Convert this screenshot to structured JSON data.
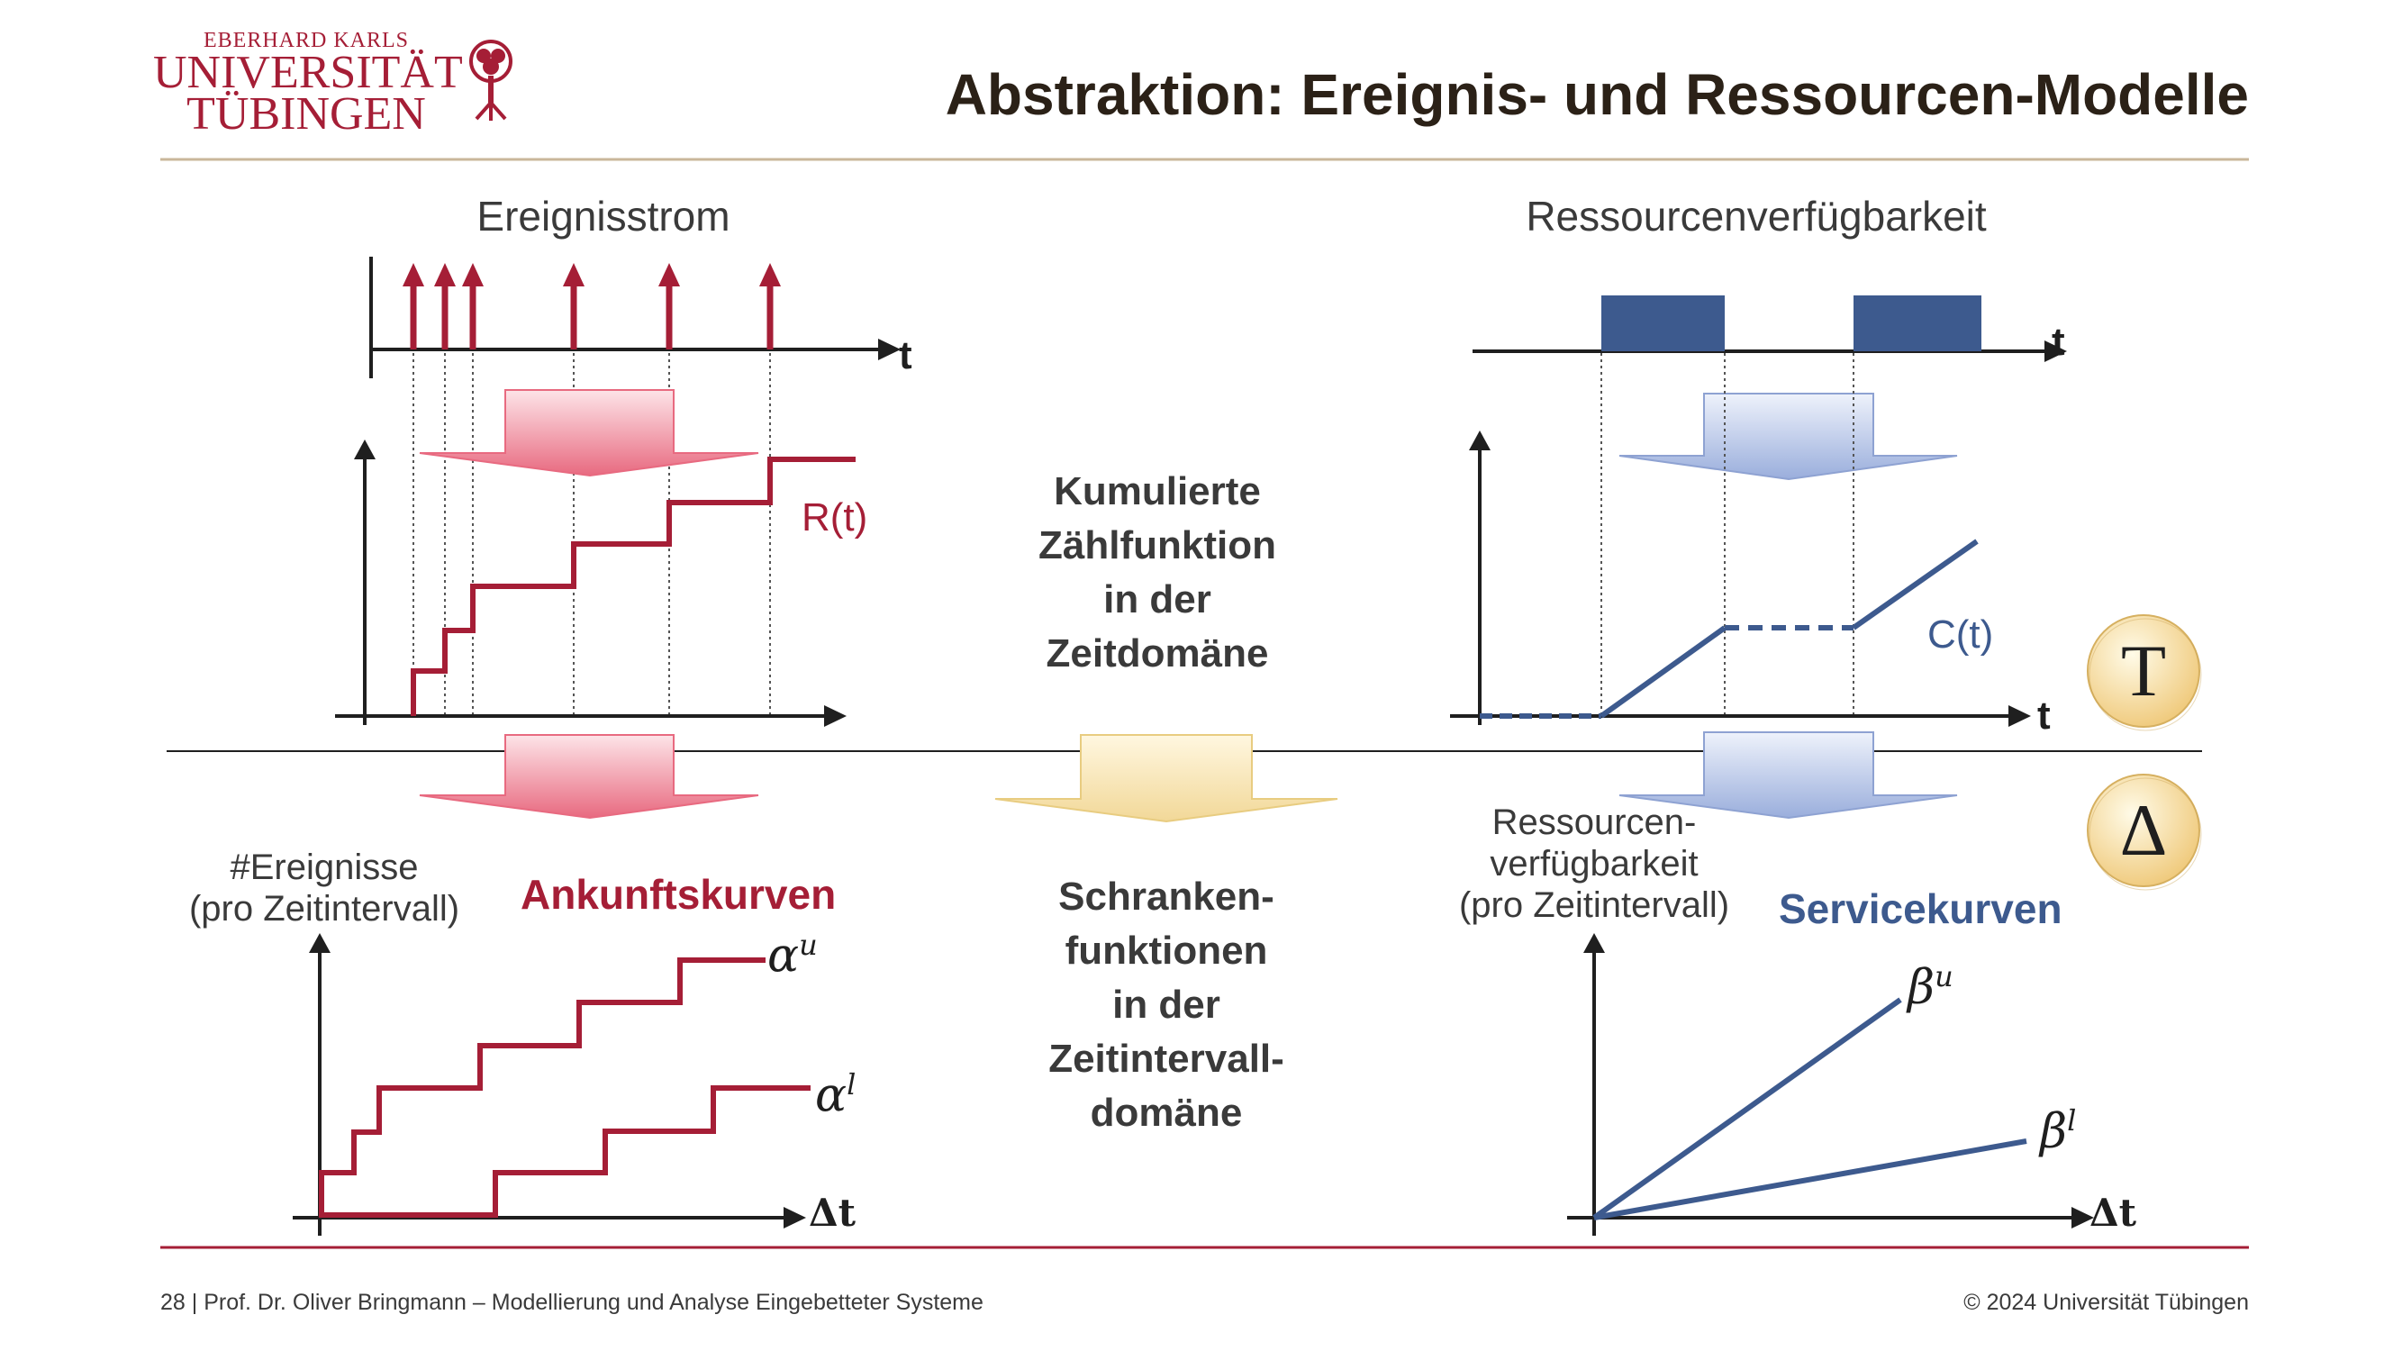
{
  "logo": {
    "line1": "EBERHARD KARLS",
    "line2": "UNIVERSITÄT",
    "line3": "TÜBINGEN"
  },
  "title": "Abstraktion: Ereignis- und Ressourcen-Modelle",
  "left": {
    "top_heading": "Ereignisstrom",
    "t_label": "t",
    "curve_label": "R(t)",
    "y_label_line1": "#Ereignisse",
    "y_label_line2": "(pro Zeitintervall)",
    "curves_title": "Ankunftskurven",
    "upper_curve": "α",
    "upper_sup": "u",
    "lower_curve": "α",
    "lower_sup": "l",
    "x_label": "Δt"
  },
  "center": {
    "time_line1": "Kumulierte",
    "time_line2": "Zählfunktion",
    "time_line3": "in der",
    "time_line4": "Zeitdomäne",
    "interval_line1": "Schranken-",
    "interval_line2": "funktionen",
    "interval_line3": "in der",
    "interval_line4": "Zeitintervall-",
    "interval_line5": "domäne"
  },
  "right": {
    "top_heading": "Ressourcenverfügbarkeit",
    "t_label": "t",
    "curve_label": "C(t)",
    "t_label_lower": "t",
    "y_label_line1": "Ressourcen-",
    "y_label_line2": "verfügbarkeit",
    "y_label_line3": "(pro Zeitintervall)",
    "curves_title": "Servicekurven",
    "upper_curve": "β",
    "upper_sup": "u",
    "lower_curve": "β",
    "lower_sup": "l",
    "x_label": "Δt"
  },
  "badges": {
    "time": "T",
    "interval": "Δ"
  },
  "footer": {
    "left": "28 | Prof. Dr. Oliver Bringmann – Modellierung und Analyse Eingebetteter Systeme",
    "right": "© 2024 Universität Tübingen"
  },
  "colors": {
    "event_red": "#a51e36",
    "resource_blue": "#3d5a8e",
    "axis": "#1f1f1f",
    "center_arrow": "#f6e3b0"
  }
}
